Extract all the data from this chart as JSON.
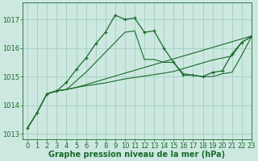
{
  "background_color": "#cce8e0",
  "grid_color": "#99ccbb",
  "line_color": "#1a6b2a",
  "xlabel": "Graphe pression niveau de la mer (hPa)",
  "xlabel_fontsize": 7,
  "tick_fontsize": 6,
  "xlim": [
    -0.5,
    23
  ],
  "ylim": [
    1012.8,
    1017.6
  ],
  "yticks": [
    1013,
    1014,
    1015,
    1016,
    1017
  ],
  "xticks": [
    0,
    1,
    2,
    3,
    4,
    5,
    6,
    7,
    8,
    9,
    10,
    11,
    12,
    13,
    14,
    15,
    16,
    17,
    18,
    19,
    20,
    21,
    22,
    23
  ],
  "line_marker_x": [
    0,
    1,
    2,
    3,
    4,
    5,
    6,
    7,
    8,
    9,
    10,
    11,
    12,
    13,
    14,
    15,
    16,
    17,
    18,
    19,
    20,
    21,
    22,
    23
  ],
  "line_marker_y": [
    1013.2,
    1013.75,
    1014.4,
    1014.5,
    1014.8,
    1015.25,
    1015.65,
    1016.15,
    1016.55,
    1017.15,
    1017.0,
    1017.05,
    1016.55,
    1016.6,
    1016.0,
    1015.5,
    1015.05,
    1015.05,
    1015.0,
    1015.15,
    1015.2,
    1015.8,
    1016.2,
    1016.4
  ],
  "line_smooth_x": [
    0,
    1,
    2,
    3,
    4,
    5,
    6,
    7,
    8,
    9,
    10,
    11,
    12,
    13,
    14,
    15,
    16,
    17,
    18,
    19,
    20,
    21,
    22,
    23
  ],
  "line_smooth_y": [
    1013.2,
    1013.75,
    1014.4,
    1014.5,
    1014.55,
    1014.62,
    1014.68,
    1014.73,
    1014.78,
    1014.85,
    1014.92,
    1014.97,
    1015.02,
    1015.07,
    1015.12,
    1015.18,
    1015.28,
    1015.38,
    1015.48,
    1015.58,
    1015.65,
    1015.72,
    1016.2,
    1016.4
  ],
  "line_mid_x": [
    2,
    3,
    4,
    5,
    6,
    7,
    8,
    9,
    10,
    11,
    12,
    13,
    14,
    15,
    16,
    17,
    18,
    19,
    20,
    21,
    22,
    23
  ],
  "line_mid_y": [
    1014.4,
    1014.5,
    1014.55,
    1014.85,
    1015.15,
    1015.5,
    1015.85,
    1016.2,
    1016.55,
    1016.6,
    1015.6,
    1015.6,
    1015.5,
    1015.5,
    1015.1,
    1015.05,
    1015.0,
    1015.0,
    1015.1,
    1015.15,
    1015.75,
    1016.4
  ],
  "line_rising_x": [
    0,
    1,
    2,
    3,
    4,
    5,
    6,
    7,
    8,
    9,
    10,
    11,
    12,
    13,
    14,
    15,
    16,
    17,
    18,
    19,
    20,
    21,
    22,
    23
  ],
  "line_rising_y": [
    1013.2,
    1013.75,
    1014.4,
    1014.5,
    1014.55,
    1014.62,
    1014.72,
    1014.82,
    1014.92,
    1015.02,
    1015.12,
    1015.22,
    1015.32,
    1015.42,
    1015.52,
    1015.62,
    1015.72,
    1015.82,
    1015.92,
    1016.02,
    1016.12,
    1016.22,
    1016.32,
    1016.42
  ]
}
